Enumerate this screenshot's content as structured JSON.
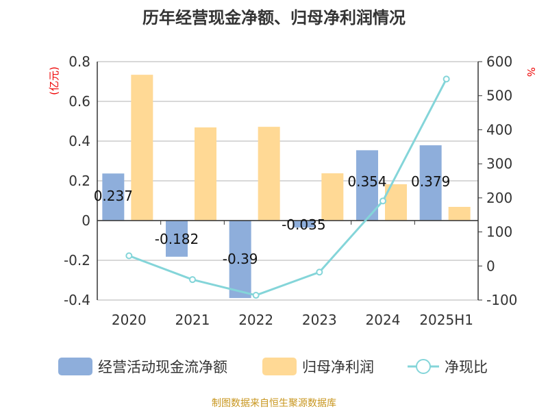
{
  "chart_data": {
    "type": "bar",
    "title": "历年经营现金净额、归母净利润情况",
    "categories": [
      "2020",
      "2021",
      "2022",
      "2023",
      "2024",
      "2025H1"
    ],
    "ylabel_left": "(亿元)",
    "ylabel_right": "%",
    "ylim_left": [
      -0.4,
      0.8
    ],
    "yticks_left": [
      "0.8",
      "0.6",
      "0.4",
      "0.2",
      "0",
      "-0.2",
      "-0.4"
    ],
    "ylim_right": [
      -100,
      600
    ],
    "yticks_right": [
      "600",
      "500",
      "400",
      "300",
      "200",
      "100",
      "0",
      "-100"
    ],
    "grid": true,
    "legend_position": "bottom",
    "series": [
      {
        "name": "经营活动现金流净额",
        "type": "bar",
        "axis": "left",
        "color": "#8eaedb",
        "values": [
          0.237,
          -0.182,
          -0.39,
          -0.035,
          0.354,
          0.379
        ],
        "labels": [
          "0.237",
          "-0.182",
          "-0.39",
          "-0.035",
          "0.354",
          "0.379"
        ]
      },
      {
        "name": "归母净利润",
        "type": "bar",
        "axis": "left",
        "color": "#ffd995",
        "values": [
          0.734,
          0.469,
          0.472,
          0.238,
          0.183,
          0.069
        ]
      },
      {
        "name": "净现比",
        "type": "line",
        "axis": "right",
        "color": "#84d5d9",
        "values": [
          30,
          -40,
          -86,
          -18,
          191,
          549
        ]
      }
    ]
  },
  "source": "制图数据来自恒生聚源数据库"
}
